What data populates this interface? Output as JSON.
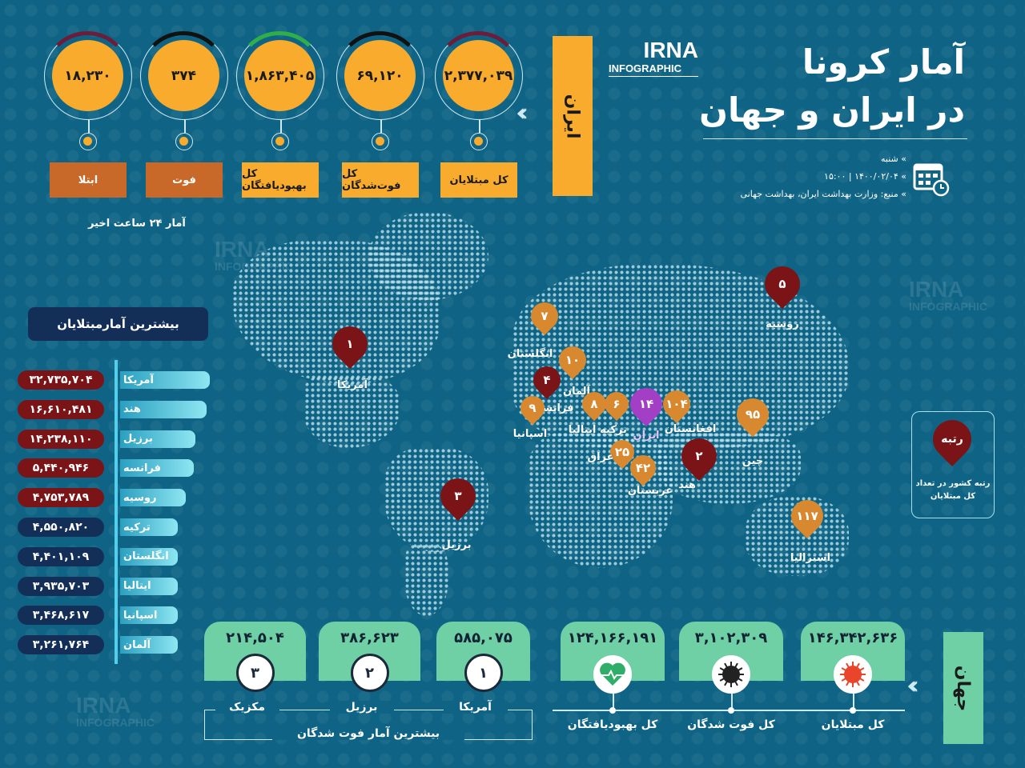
{
  "header": {
    "title_line1": "آمار کرونا",
    "title_line2": "در ایران و جهان",
    "logo_main": "IRNA",
    "logo_sub": "INFOGRAPHIC",
    "day": "شنبه",
    "datetime": "۱۴۰۰/۰۲/۰۴ | ۱۵:۰۰",
    "source": "منبع: وزارت بهداشت ایران، بهداشت جهانی",
    "calendar_icon": "calendar-clock-icon"
  },
  "iran": {
    "section_label": "ایران",
    "stats": [
      {
        "value": "۲,۳۷۷,۰۳۹",
        "label": "کل مبتلایان",
        "arc_color": "#6b1d3a"
      },
      {
        "value": "۶۹,۱۲۰",
        "label": "کل فوت‌شدگان",
        "arc_color": "#111111"
      },
      {
        "value": "۱,۸۶۳,۴۰۵",
        "label": "کل بهبودیافتگان",
        "arc_color": "#2fae4a"
      },
      {
        "value": "۳۷۴",
        "label": "فوت",
        "arc_color": "#111111"
      },
      {
        "value": "۱۸,۲۳۰",
        "label": "ابتلا",
        "arc_color": "#6b1d3a"
      }
    ],
    "last24_label": "آمار ۲۴ ساعت اخیر"
  },
  "top_cases": {
    "title": "بیشترین آمارمبتلایان",
    "rows": [
      {
        "country": "آمریکا",
        "value": "۳۲,۷۳۵,۷۰۴"
      },
      {
        "country": "هند",
        "value": "۱۶,۶۱۰,۴۸۱"
      },
      {
        "country": "برزیل",
        "value": "۱۴,۲۳۸,۱۱۰"
      },
      {
        "country": "فرانسه",
        "value": "۵,۴۴۰,۹۴۶"
      },
      {
        "country": "روسیه",
        "value": "۴,۷۵۳,۷۸۹"
      },
      {
        "country": "ترکیه",
        "value": "۴,۵۵۰,۸۲۰"
      },
      {
        "country": "انگلستان",
        "value": "۴,۴۰۱,۱۰۹"
      },
      {
        "country": "ایتالیا",
        "value": "۳,۹۳۵,۷۰۳"
      },
      {
        "country": "اسپانیا",
        "value": "۳,۴۶۸,۶۱۷"
      },
      {
        "country": "آلمان",
        "value": "۳,۲۶۱,۷۶۴"
      }
    ]
  },
  "map": {
    "pins": [
      {
        "rank": "۱",
        "country": "آمریکا",
        "color": "#7a1416"
      },
      {
        "rank": "۳",
        "country": "برزیل",
        "color": "#7a1416"
      },
      {
        "rank": "۷",
        "country": "انگلستان",
        "color": "#d8892f"
      },
      {
        "rank": "۱۰",
        "country": "آلمان",
        "color": "#d8892f"
      },
      {
        "rank": "۴",
        "country": "فرانسه",
        "color": "#7a1416"
      },
      {
        "rank": "۹",
        "country": "اسپانیا",
        "color": "#d8892f"
      },
      {
        "rank": "۸",
        "country": "ایتالیا",
        "color": "#d8892f"
      },
      {
        "rank": "۶",
        "country": "ترکیه",
        "color": "#d8892f"
      },
      {
        "rank": "۱۴",
        "country": "ایران",
        "color": "#a23fc4"
      },
      {
        "rank": "۱۰۴",
        "country": "افغانستان",
        "color": "#d8892f"
      },
      {
        "rank": "۲۵",
        "country": "عراق",
        "color": "#d8892f"
      },
      {
        "rank": "۴۲",
        "country": "عربستان",
        "color": "#d8892f"
      },
      {
        "rank": "۲",
        "country": "هند",
        "color": "#7a1416"
      },
      {
        "rank": "۹۵",
        "country": "چین",
        "color": "#d8892f"
      },
      {
        "rank": "۵",
        "country": "روسیه",
        "color": "#7a1416"
      },
      {
        "rank": "۱۱۷",
        "country": "استرالیا",
        "color": "#d8892f"
      }
    ],
    "legend": {
      "pin_text": "رتبه",
      "caption": "رتبه کشور در تعداد کل مبتلایان"
    }
  },
  "world": {
    "section_label": "جهان",
    "stats": [
      {
        "value": "۱۴۶,۳۴۲,۶۳۶",
        "label": "کل مبتلایان",
        "icon": "virus-red-icon"
      },
      {
        "value": "۳,۱۰۲,۳۰۹",
        "label": "کل فوت شدگان",
        "icon": "virus-black-icon"
      },
      {
        "value": "۱۲۴,۱۶۶,۱۹۱",
        "label": "کل بهبودیافتگان",
        "icon": "heart-pulse-icon"
      }
    ],
    "top_deaths": {
      "title": "بیشترین آمار فوت شدگان",
      "items": [
        {
          "rank": "۱",
          "country": "آمریکا",
          "value": "۵۸۵,۰۷۵"
        },
        {
          "rank": "۲",
          "country": "برزیل",
          "value": "۳۸۶,۶۲۳"
        },
        {
          "rank": "۳",
          "country": "مکزیک",
          "value": "۲۱۴,۵۰۴"
        }
      ]
    }
  },
  "colors": {
    "background": "#0f6485",
    "orange": "#f8ab2c",
    "brown": "#c8692a",
    "green": "#6fcfa5",
    "navy": "#142f57",
    "dark_red": "#7a1416"
  }
}
